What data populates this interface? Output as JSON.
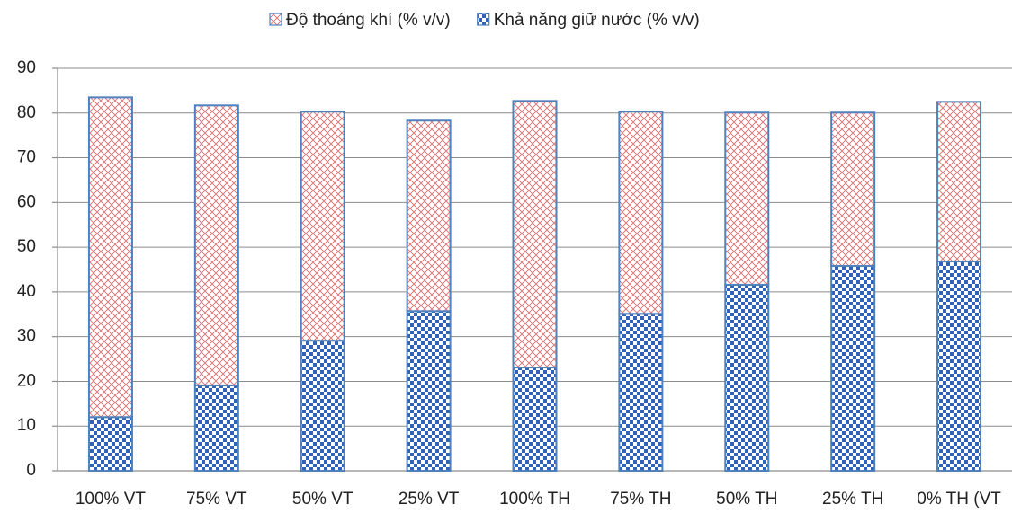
{
  "chart_data": {
    "type": "stacked_bar",
    "categories": [
      "100% VT",
      "75% VT",
      "50% VT",
      "25% VT",
      "100% TH",
      "75% TH",
      "50% TH",
      "25% TH",
      "0% TH (VT"
    ],
    "series": [
      {
        "name": "Khả năng giữ nước (% v/v)",
        "color": "#2f62b8",
        "values": [
          12.0,
          19.1,
          29.1,
          35.7,
          23.1,
          35.1,
          41.6,
          45.8,
          46.8
        ]
      },
      {
        "name": "Độ thoáng khí (% v/v)",
        "color": "#e06a6a",
        "values": [
          71.5,
          62.6,
          51.2,
          42.6,
          59.6,
          45.2,
          38.5,
          34.3,
          35.7
        ]
      }
    ],
    "ylim": [
      0,
      90
    ],
    "yticks": [
      0,
      10,
      20,
      30,
      40,
      50,
      60,
      70,
      80,
      90
    ],
    "grid": true,
    "legend": "top"
  }
}
